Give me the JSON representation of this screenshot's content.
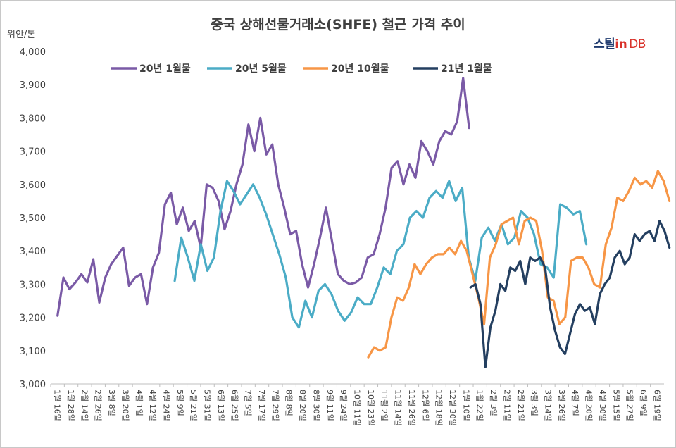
{
  "chart_data": {
    "type": "line",
    "title": "중국 상해선물거래소(SHFE) 철근 가격 추이",
    "ylabel": "위안/톤",
    "ylim": [
      3000,
      4000
    ],
    "yticks": [
      "3,000",
      "3,100",
      "3,200",
      "3,300",
      "3,400",
      "3,500",
      "3,600",
      "3,700",
      "3,800",
      "3,900",
      "4,000"
    ],
    "x_labels": [
      "1월 16일",
      "1월 28일",
      "2월 14일",
      "2월 26일",
      "3월 8일",
      "3월 20일",
      "4월 1일",
      "4월 12일",
      "4월 24일",
      "5월 9일",
      "5월 21일",
      "5월 31일",
      "6월 13일",
      "6월 25일",
      "7월 5일",
      "7월 17일",
      "7월 29일",
      "8월 8일",
      "8월 20일",
      "8월 30일",
      "9월 11일",
      "9월 24일",
      "10월 11일",
      "10월 23일",
      "11월 2일",
      "11월 14일",
      "11월 26일",
      "12월 6일",
      "12월 18일",
      "12월 30일",
      "1월 10일",
      "1월 22일",
      "2월 3일",
      "2월 11일",
      "2월 21일",
      "3월 3일",
      "3월 14일",
      "3월 26일",
      "4월 7일",
      "4월 20일",
      "4월 30일",
      "5월 15일",
      "5월 27일",
      "6월 9일",
      "6월 19일"
    ],
    "series": [
      {
        "name": "20년 1월물",
        "color": "#7a5aa6",
        "start": 0,
        "end": 30.2,
        "values": [
          3205,
          3320,
          3285,
          3305,
          3330,
          3305,
          3375,
          3245,
          3320,
          3360,
          3385,
          3410,
          3295,
          3320,
          3330,
          3240,
          3350,
          3395,
          3540,
          3575,
          3480,
          3530,
          3460,
          3490,
          3410,
          3600,
          3590,
          3550,
          3465,
          3520,
          3600,
          3660,
          3780,
          3700,
          3800,
          3690,
          3720,
          3600,
          3530,
          3450,
          3460,
          3360,
          3290,
          3360,
          3440,
          3530,
          3430,
          3330,
          3310,
          3300,
          3305,
          3320,
          3380,
          3390,
          3450,
          3530,
          3650,
          3670,
          3600,
          3660,
          3620,
          3730,
          3700,
          3660,
          3730,
          3760,
          3750,
          3790,
          3920,
          3770
        ],
        "spikes": [
          [
            30.05,
            3925
          ],
          [
            30.15,
            3770
          ]
        ]
      },
      {
        "name": "20년 5월물",
        "color": "#4bacc6",
        "start": 8.6,
        "end": 38.8,
        "values": [
          3310,
          3440,
          3380,
          3310,
          3420,
          3340,
          3380,
          3520,
          3610,
          3580,
          3540,
          3570,
          3600,
          3560,
          3510,
          3450,
          3390,
          3320,
          3200,
          3170,
          3250,
          3200,
          3280,
          3300,
          3270,
          3220,
          3190,
          3215,
          3260,
          3240,
          3240,
          3290,
          3350,
          3330,
          3400,
          3420,
          3500,
          3520,
          3500,
          3560,
          3580,
          3560,
          3610,
          3550,
          3590,
          3380,
          3310,
          3440,
          3470,
          3430,
          3480,
          3420,
          3440,
          3520,
          3500,
          3450,
          3360,
          3350,
          3320,
          3540,
          3530,
          3510,
          3520,
          3420
        ]
      },
      {
        "name": "20년 10월물",
        "color": "#f79646",
        "start": 22.8,
        "end": 44.9,
        "values": [
          3080,
          3110,
          3100,
          3110,
          3200,
          3260,
          3250,
          3290,
          3360,
          3330,
          3360,
          3380,
          3390,
          3390,
          3410,
          3390,
          3430,
          3400,
          3330,
          3260,
          3180,
          3380,
          3420,
          3480,
          3490,
          3500,
          3420,
          3490,
          3500,
          3490,
          3400,
          3260,
          3250,
          3180,
          3200,
          3370,
          3380,
          3380,
          3350,
          3300,
          3290,
          3420,
          3470,
          3560,
          3550,
          3580,
          3620,
          3600,
          3610,
          3590,
          3640,
          3610,
          3550
        ]
      },
      {
        "name": "21년 1월물",
        "color": "#243f60",
        "start": 30.3,
        "end": 44.9,
        "values": [
          3290,
          3300,
          3240,
          3050,
          3170,
          3220,
          3300,
          3280,
          3350,
          3340,
          3370,
          3300,
          3380,
          3370,
          3380,
          3350,
          3230,
          3160,
          3110,
          3090,
          3150,
          3210,
          3240,
          3220,
          3230,
          3180,
          3270,
          3300,
          3320,
          3380,
          3400,
          3360,
          3380,
          3450,
          3430,
          3450,
          3460,
          3430,
          3490,
          3460,
          3410
        ]
      }
    ],
    "legend": "top-left",
    "grid": false
  },
  "logo": {
    "part1": "스틸",
    "part2": "in",
    "part3": "DB"
  }
}
